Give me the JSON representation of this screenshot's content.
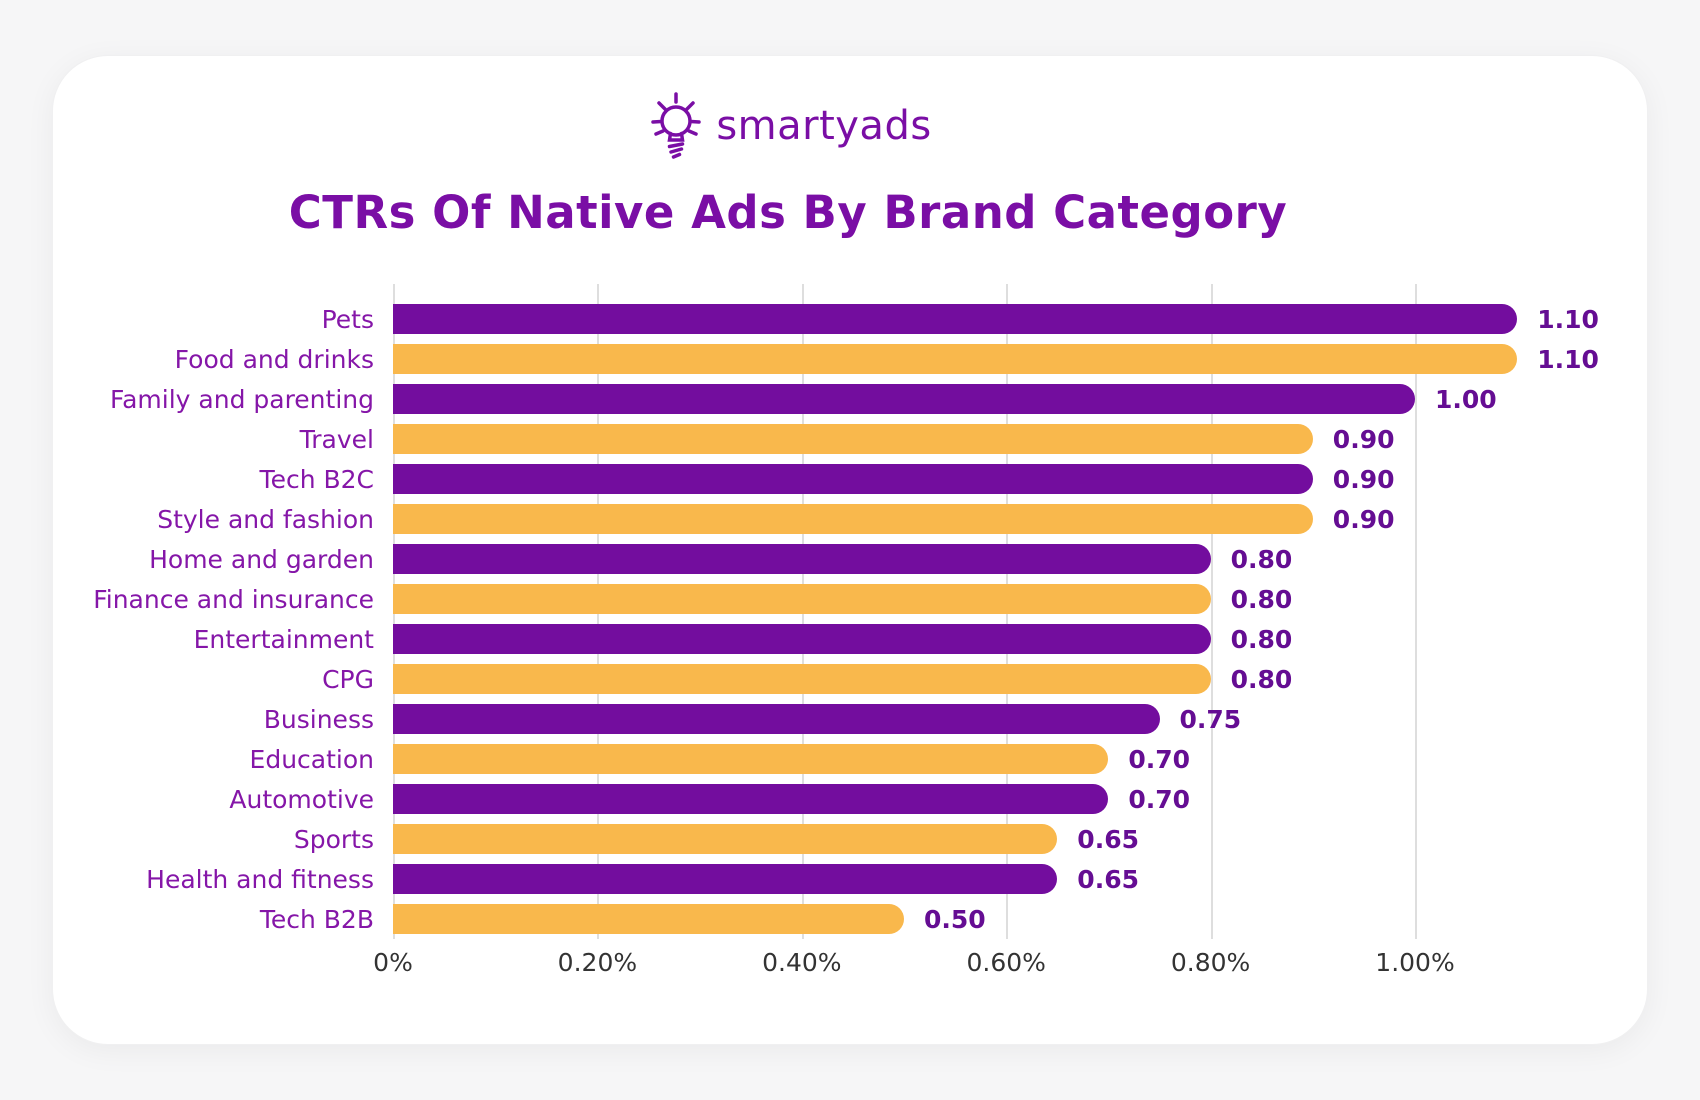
{
  "brand": {
    "name": "smartyads"
  },
  "chart_data": {
    "type": "bar",
    "orientation": "horizontal",
    "title": "CTRs Of Native Ads By Brand Category",
    "categories": [
      "Pets",
      "Food and drinks",
      "Family and parenting",
      "Travel",
      "Tech B2C",
      "Style and fashion",
      "Home and garden",
      "Finance and insurance",
      "Entertainment",
      "CPG",
      "Business",
      "Education",
      "Automotive",
      "Sports",
      "Health and fitness",
      "Tech B2B"
    ],
    "values": [
      1.1,
      1.1,
      1.0,
      0.9,
      0.9,
      0.9,
      0.8,
      0.8,
      0.8,
      0.8,
      0.75,
      0.7,
      0.7,
      0.65,
      0.65,
      0.5
    ],
    "value_labels": [
      "1.10",
      "1.10",
      "1.00",
      "0.90",
      "0.90",
      "0.90",
      "0.80",
      "0.80",
      "0.80",
      "0.80",
      "0.75",
      "0.70",
      "0.70",
      "0.65",
      "0.65",
      "0.50"
    ],
    "x_ticks": [
      {
        "label": "0%",
        "value": 0
      },
      {
        "label": "0.20%",
        "value": 0.2
      },
      {
        "label": "0.40%",
        "value": 0.4
      },
      {
        "label": "0.60%",
        "value": 0.6
      },
      {
        "label": "0.80%",
        "value": 0.8
      },
      {
        "label": "1.00%",
        "value": 1.0
      }
    ],
    "xlim": [
      0,
      1.1
    ],
    "unit": "%",
    "grid": "vertical",
    "legend": "none"
  },
  "colors": {
    "bar_alternating": [
      "#730d9e",
      "#f9b84c"
    ],
    "title": "#7a0ea5",
    "brand": "#7a0ea5",
    "category_label": "#8516a8",
    "value_label": "#650d93",
    "axis_label": "#333333",
    "gridline": "#dedede",
    "card_background": "#ffffff",
    "page_background": "#f6f6f7"
  }
}
